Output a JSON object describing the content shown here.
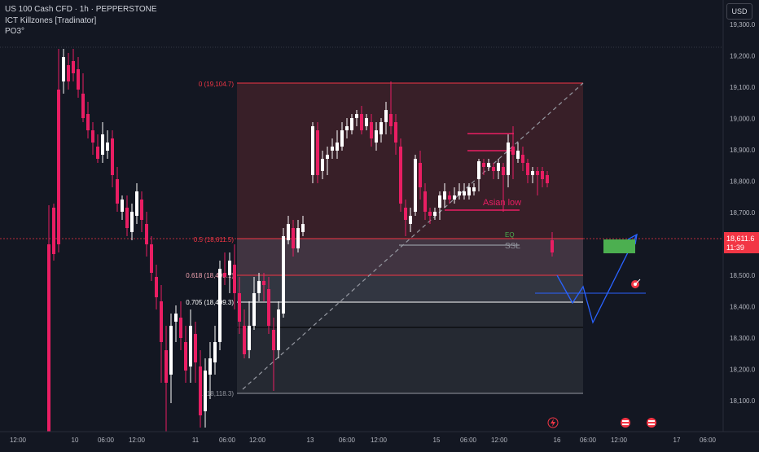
{
  "legend": {
    "symbol": "US 100 Cash CFD · 1h · PEPPERSTONE",
    "indicator1": "ICT Killzones [Tradinator]",
    "indicator2": "PO3°"
  },
  "currency_button": "USD",
  "colors": {
    "background": "#131722",
    "up_candle": "#ffffff",
    "down_candle": "#e91e63",
    "premium_zone": "#3a2029",
    "discount_zone": "#2a2e39",
    "fib_line": "#f23645",
    "projection_line": "#2962ff",
    "target_box": "#4caf50"
  },
  "price_axis": {
    "ticks": [
      "19,300.0",
      "19,200.0",
      "19,100.0",
      "19,000.0",
      "18,900.0",
      "18,800.0",
      "18,700.0",
      "18,600.0",
      "18,500.0",
      "18,400.0",
      "18,300.0",
      "18,200.0",
      "18,100.0"
    ],
    "current_price": "18,611.6",
    "countdown": "11:39"
  },
  "time_axis": {
    "ticks": [
      "12:00",
      "10",
      "06:00",
      "12:00",
      "11",
      "06:00",
      "12:00",
      "13",
      "06:00",
      "12:00",
      "15",
      "06:00",
      "12:00",
      "16",
      "06:00",
      "12:00",
      "17",
      "06:00"
    ]
  },
  "fib_levels": {
    "level_0": "0 (19,104.7)",
    "level_05": "0.5 (18,611.5)",
    "level_0618": "0.618 (18,495.1)",
    "level_0705": "0.705 (18,409.3)",
    "level_1": "1 (18,118.3)"
  },
  "annotations": {
    "asian_low": "Asian low",
    "ssl": "SSL",
    "eq": "EQ"
  },
  "event_icons": [
    "lightning-event-icon",
    "us-flag-event-icon",
    "us-flag-event-icon"
  ],
  "chart_data": {
    "type": "candlestick",
    "title": "US 100 Cash CFD · 1h · PEPPERSTONE",
    "ylim": [
      18050,
      19350
    ],
    "approximate_closes": [
      18710,
      19150,
      18950,
      18800,
      18650,
      18450,
      18250,
      18150,
      18250,
      18450,
      18600,
      18660,
      18800,
      18900,
      19000,
      18950,
      18700,
      18680,
      18760,
      18820,
      18890,
      18800,
      18600
    ],
    "fib_retracement": {
      "high": 19104.7,
      "low": 18118.3,
      "levels": [
        0,
        0.5,
        0.618,
        0.705,
        1
      ]
    }
  }
}
